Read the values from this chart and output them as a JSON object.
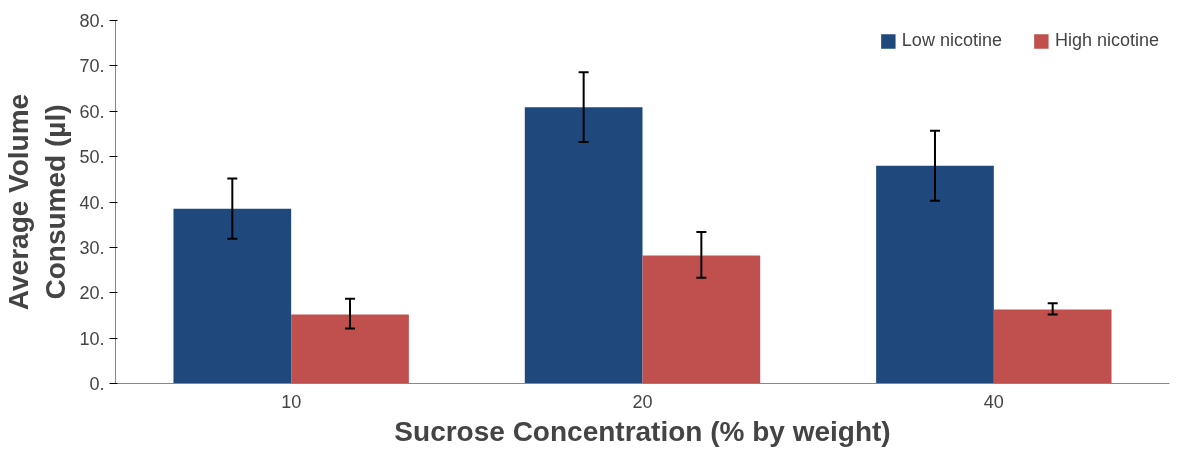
{
  "chart_data": {
    "type": "bar",
    "xlabel": "Sucrose Concentration (% by weight)",
    "ylabel": "Average Volume\nConsumed (µl)",
    "categories": [
      "10",
      "20",
      "40"
    ],
    "series": [
      {
        "name": "Low nicotine",
        "color": "#1f497d",
        "values": [
          38.5,
          60.9,
          48.0
        ],
        "errors": [
          [
            31.9,
            45.2
          ],
          [
            53.2,
            68.6
          ],
          [
            40.3,
            55.7
          ]
        ]
      },
      {
        "name": "High nicotine",
        "color": "#c0504d",
        "values": [
          15.2,
          28.2,
          16.3
        ],
        "errors": [
          [
            12.1,
            18.7
          ],
          [
            23.3,
            33.4
          ],
          [
            15.2,
            17.7
          ]
        ]
      }
    ],
    "ylim": [
      0,
      80
    ],
    "yticks": [
      {
        "value": 0,
        "label": "0."
      },
      {
        "value": 10,
        "label": "10."
      },
      {
        "value": 20,
        "label": "20."
      },
      {
        "value": 30,
        "label": "30."
      },
      {
        "value": 40,
        "label": "40."
      },
      {
        "value": 50,
        "label": "50."
      },
      {
        "value": 60,
        "label": "60."
      },
      {
        "value": 70,
        "label": "70."
      },
      {
        "value": 80,
        "label": "80."
      }
    ],
    "grid": false,
    "legend": "top right"
  }
}
